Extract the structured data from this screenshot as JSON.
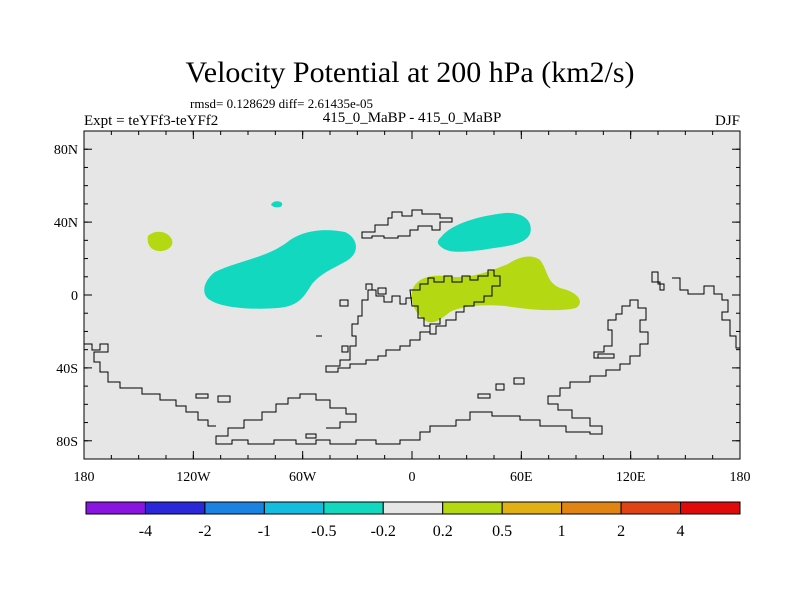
{
  "title": "Velocity Potential at 200 hPa (km2/s)",
  "stats_line": "rmsd= 0.128629 diff= 2.61435e-05",
  "expt_label": "Expt = teYFf3-teYFf2",
  "center_label": "415_0_MaBP - 415_0_MaBP",
  "season_label": "DJF",
  "y_ticks": [
    {
      "label": "80N",
      "lat": 80
    },
    {
      "label": "40N",
      "lat": 40
    },
    {
      "label": "0",
      "lat": 0
    },
    {
      "label": "40S",
      "lat": -40
    },
    {
      "label": "80S",
      "lat": -80
    }
  ],
  "x_ticks": [
    {
      "label": "180",
      "lon": -180
    },
    {
      "label": "120W",
      "lon": -120
    },
    {
      "label": "60W",
      "lon": -60
    },
    {
      "label": "0",
      "lon": 0
    },
    {
      "label": "60E",
      "lon": 60
    },
    {
      "label": "120E",
      "lon": 120
    },
    {
      "label": "180",
      "lon": 180
    }
  ],
  "colorbar": {
    "colors": [
      "#8a14e0",
      "#2a28d8",
      "#1a82e0",
      "#14bce0",
      "#12d8c0",
      "#e6e6e6",
      "#b4d812",
      "#e0b014",
      "#e08414",
      "#e04414",
      "#e00a0a"
    ],
    "labels": [
      "-4",
      "-2",
      "-1",
      "-0.5",
      "-0.2",
      "0.2",
      "0.5",
      "1",
      "2",
      "4"
    ]
  },
  "colors": {
    "background": "#e6e6e6",
    "negative_fill": "#12d8c0",
    "positive_fill": "#b4d812",
    "coastline": "#000000"
  }
}
